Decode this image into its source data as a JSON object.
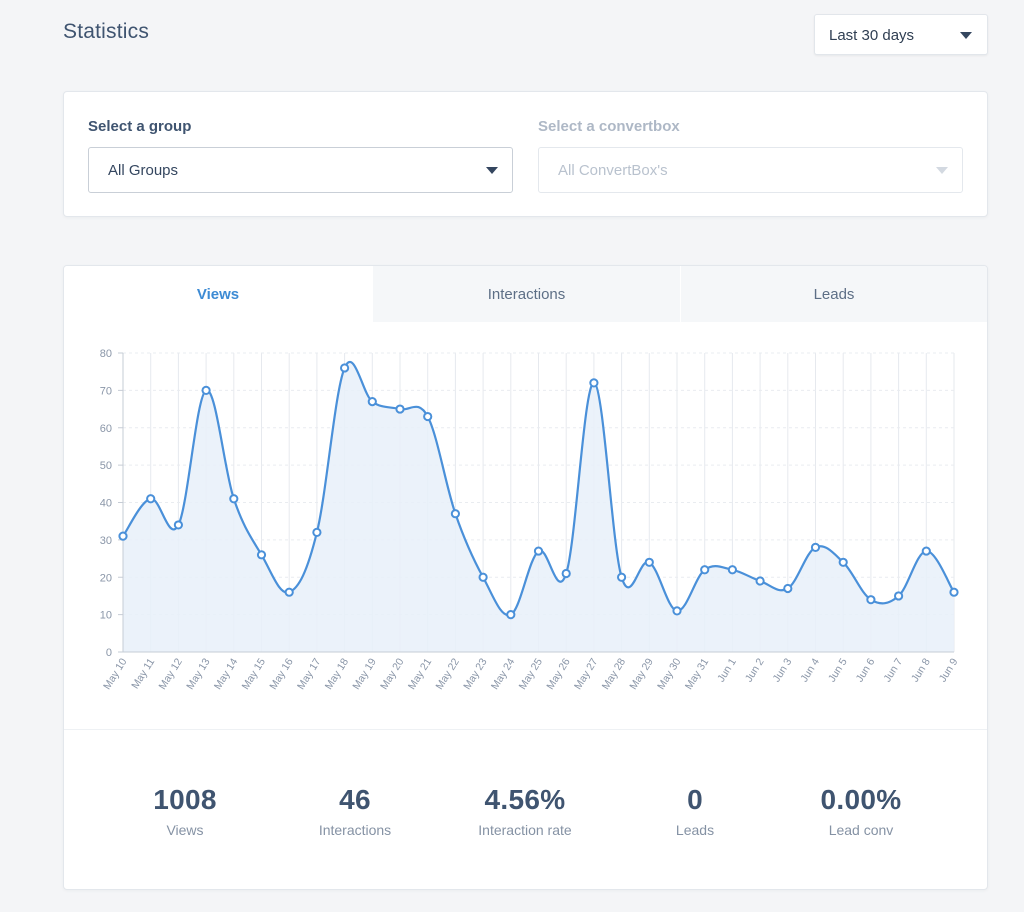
{
  "header": {
    "title": "Statistics",
    "range_value": "Last 30 days"
  },
  "filters": {
    "group_label": "Select a group",
    "group_value": "All Groups",
    "convertbox_label": "Select a convertbox",
    "convertbox_value": "All ConvertBox's"
  },
  "tabs": [
    {
      "label": "Views",
      "active": true
    },
    {
      "label": "Interactions",
      "active": false
    },
    {
      "label": "Leads",
      "active": false
    }
  ],
  "colors": {
    "line": "#4a90d9",
    "fill": "#e8f0f9",
    "grid": "#e6e9ee"
  },
  "chart_data": {
    "type": "area",
    "title": "",
    "xlabel": "",
    "ylabel": "",
    "ylim": [
      0,
      80
    ],
    "yticks": [
      0,
      10,
      20,
      30,
      40,
      50,
      60,
      70,
      80
    ],
    "grid": true,
    "categories": [
      "May 10",
      "May 11",
      "May 12",
      "May 13",
      "May 14",
      "May 15",
      "May 16",
      "May 17",
      "May 18",
      "May 19",
      "May 20",
      "May 21",
      "May 22",
      "May 23",
      "May 24",
      "May 25",
      "May 26",
      "May 27",
      "May 28",
      "May 29",
      "May 30",
      "May 31",
      "Jun 1",
      "Jun 2",
      "Jun 3",
      "Jun 4",
      "Jun 5",
      "Jun 6",
      "Jun 7",
      "Jun 8",
      "Jun 9"
    ],
    "series": [
      {
        "values": [
          31,
          41,
          34,
          70,
          41,
          26,
          16,
          32,
          76,
          67,
          65,
          63,
          37,
          20,
          10,
          27,
          21,
          72,
          20,
          24,
          11,
          22,
          22,
          19,
          17,
          28,
          24,
          14,
          15,
          27,
          16
        ]
      }
    ]
  },
  "stats": [
    {
      "value": "1008",
      "label": "Views"
    },
    {
      "value": "46",
      "label": "Interactions"
    },
    {
      "value": "4.56%",
      "label": "Interaction rate"
    },
    {
      "value": "0",
      "label": "Leads"
    },
    {
      "value": "0.00%",
      "label": "Lead conv"
    }
  ]
}
